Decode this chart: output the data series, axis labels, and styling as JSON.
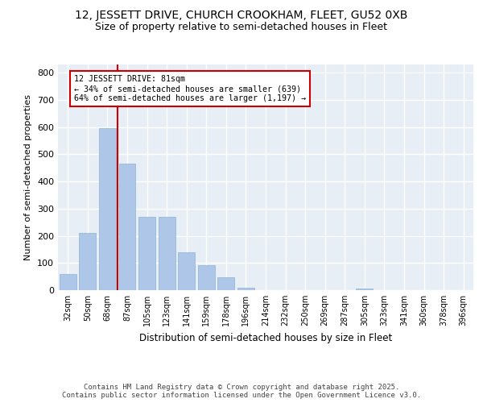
{
  "title_line1": "12, JESSETT DRIVE, CHURCH CROOKHAM, FLEET, GU52 0XB",
  "title_line2": "Size of property relative to semi-detached houses in Fleet",
  "xlabel": "Distribution of semi-detached houses by size in Fleet",
  "ylabel": "Number of semi-detached properties",
  "categories": [
    "32sqm",
    "50sqm",
    "68sqm",
    "87sqm",
    "105sqm",
    "123sqm",
    "141sqm",
    "159sqm",
    "178sqm",
    "196sqm",
    "214sqm",
    "232sqm",
    "250sqm",
    "269sqm",
    "287sqm",
    "305sqm",
    "323sqm",
    "341sqm",
    "360sqm",
    "378sqm",
    "396sqm"
  ],
  "values": [
    60,
    210,
    595,
    465,
    270,
    270,
    140,
    93,
    47,
    10,
    0,
    0,
    0,
    0,
    0,
    5,
    0,
    0,
    0,
    0,
    0
  ],
  "bar_color": "#aec6e8",
  "bar_edge_color": "#8ab4d8",
  "vline_color": "#cc0000",
  "annotation_text": "12 JESSETT DRIVE: 81sqm\n← 34% of semi-detached houses are smaller (639)\n64% of semi-detached houses are larger (1,197) →",
  "annotation_box_color": "#ffffff",
  "annotation_box_edge_color": "#cc0000",
  "ylim": [
    0,
    830
  ],
  "yticks": [
    0,
    100,
    200,
    300,
    400,
    500,
    600,
    700,
    800
  ],
  "background_color": "#e8eef5",
  "fig_background_color": "#ffffff",
  "footer_text": "Contains HM Land Registry data © Crown copyright and database right 2025.\nContains public sector information licensed under the Open Government Licence v3.0.",
  "grid_color": "#ffffff",
  "title_fontsize": 10,
  "subtitle_fontsize": 9,
  "footer_fontsize": 6.5
}
